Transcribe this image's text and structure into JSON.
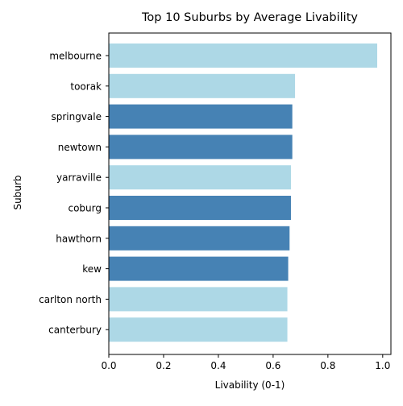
{
  "chart_data": {
    "type": "bar",
    "orientation": "horizontal",
    "title": "Top 10 Suburbs by Average Livability",
    "xlabel": "Livability (0-1)",
    "ylabel": "Suburb",
    "xlim": [
      0,
      1.03
    ],
    "xticks": [
      "0.0",
      "0.2",
      "0.4",
      "0.6",
      "0.8",
      "1.0"
    ],
    "xtick_values": [
      0,
      0.2,
      0.4,
      0.6,
      0.8,
      1.0
    ],
    "grid": false,
    "categories": [
      "melbourne",
      "toorak",
      "springvale",
      "newtown",
      "yarraville",
      "coburg",
      "hawthorn",
      "kew",
      "carlton north",
      "canterbury"
    ],
    "values": [
      0.98,
      0.68,
      0.67,
      0.67,
      0.665,
      0.665,
      0.66,
      0.655,
      0.652,
      0.652
    ],
    "bar_colors": [
      "#add8e6",
      "#add8e6",
      "#4682b4",
      "#4682b4",
      "#add8e6",
      "#4682b4",
      "#4682b4",
      "#4682b4",
      "#add8e6",
      "#add8e6"
    ]
  }
}
